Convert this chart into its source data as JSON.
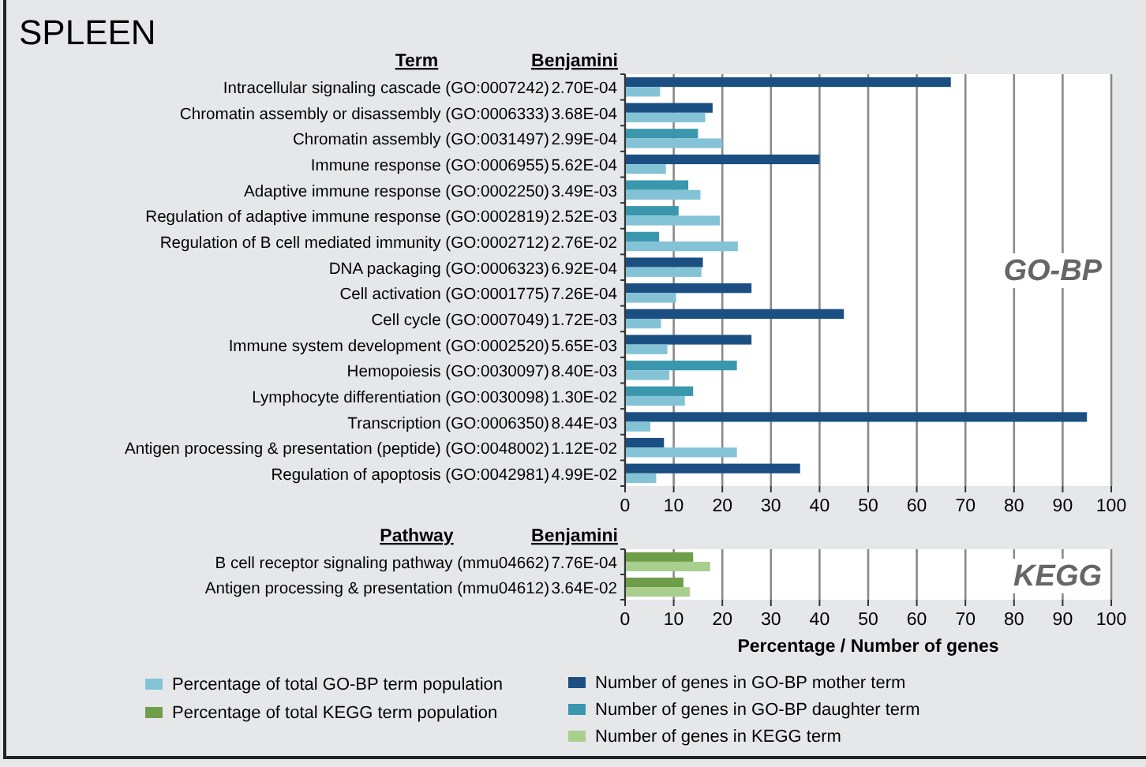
{
  "chart_data": [
    {
      "type": "bar",
      "orientation": "horizontal",
      "title": "SPLEEN",
      "categories": [
        "Intracellular signaling cascade (GO:0007242)",
        "Chromatin assembly or disassembly (GO:0006333)",
        "Chromatin assembly (GO:0031497)",
        "Immune response (GO:0006955)",
        "Adaptive immune response (GO:0002250)",
        "Regulation of adaptive immune response (GO:0002819)",
        "Regulation of B cell mediated immunity (GO:0002712)",
        "DNA packaging (GO:0006323)",
        "Cell activation (GO:0001775)",
        "Cell cycle (GO:0007049)",
        "Immune system development (GO:0002520)",
        "Hemopoiesis (GO:0030097)",
        "Lymphocyte differentiation (GO:0030098)",
        "Transcription (GO:0006350)",
        "Antigen processing & presentation (peptide) (GO:0048002)",
        "Regulation of apoptosis (GO:0042981)"
      ],
      "series": [
        {
          "name": "Number of genes in GO-BP mother term",
          "color": "#1b4f82",
          "values": [
            67,
            18,
            null,
            40,
            null,
            null,
            null,
            16,
            26,
            45,
            26,
            null,
            null,
            95,
            8,
            36
          ]
        },
        {
          "name": "Number of genes in GO-BP daughter term",
          "color": "#3a97ad",
          "values": [
            null,
            null,
            15,
            null,
            13,
            11,
            7,
            null,
            null,
            null,
            null,
            23,
            14,
            null,
            null,
            null
          ]
        },
        {
          "name": "Percentage of total GO-BP term population",
          "color": "#84c3d6",
          "values": [
            7.2,
            16.5,
            20,
            8.4,
            15.5,
            19.5,
            23.2,
            15.7,
            10.5,
            7.4,
            8.7,
            9.1,
            12.3,
            5.2,
            23,
            6.4
          ]
        }
      ],
      "annotations": [
        "Term",
        "Benjamini",
        "GO-BP",
        "2.70E-04",
        "3.68E-04",
        "2.99E-04",
        "5.62E-04",
        "3.49E-03",
        "2.52E-03",
        "2.76E-02",
        "6.92E-04",
        "7.26E-04",
        "1.72E-03",
        "5.65E-03",
        "8.40E-03",
        "1.30E-02",
        "8.44E-03",
        "1.12E-02",
        "4.99E-02"
      ],
      "xlim": [
        0,
        100
      ],
      "xticks": [
        0,
        10,
        20,
        30,
        40,
        50,
        60,
        70,
        80,
        90,
        100
      ],
      "grid": "x",
      "legend": "bottom"
    },
    {
      "type": "bar",
      "orientation": "horizontal",
      "xlabel": "Percentage / Number of genes",
      "categories": [
        "B cell receptor signaling pathway (mmu04662)",
        "Antigen processing & presentation (mmu04612)"
      ],
      "series": [
        {
          "name": "Percentage of total KEGG term population",
          "color": "#6f9e4a",
          "values": [
            14,
            12
          ]
        },
        {
          "name": "Number of genes in KEGG term",
          "color": "#a9cf8f",
          "values": [
            17.5,
            13.3
          ]
        }
      ],
      "annotations": [
        "Pathway",
        "Benjamini",
        "KEGG",
        "7.76E-04",
        "3.64E-02"
      ],
      "xlim": [
        0,
        100
      ],
      "xticks": [
        0,
        10,
        20,
        30,
        40,
        50,
        60,
        70,
        80,
        90,
        100
      ],
      "grid": "x",
      "legend": "bottom"
    }
  ]
}
